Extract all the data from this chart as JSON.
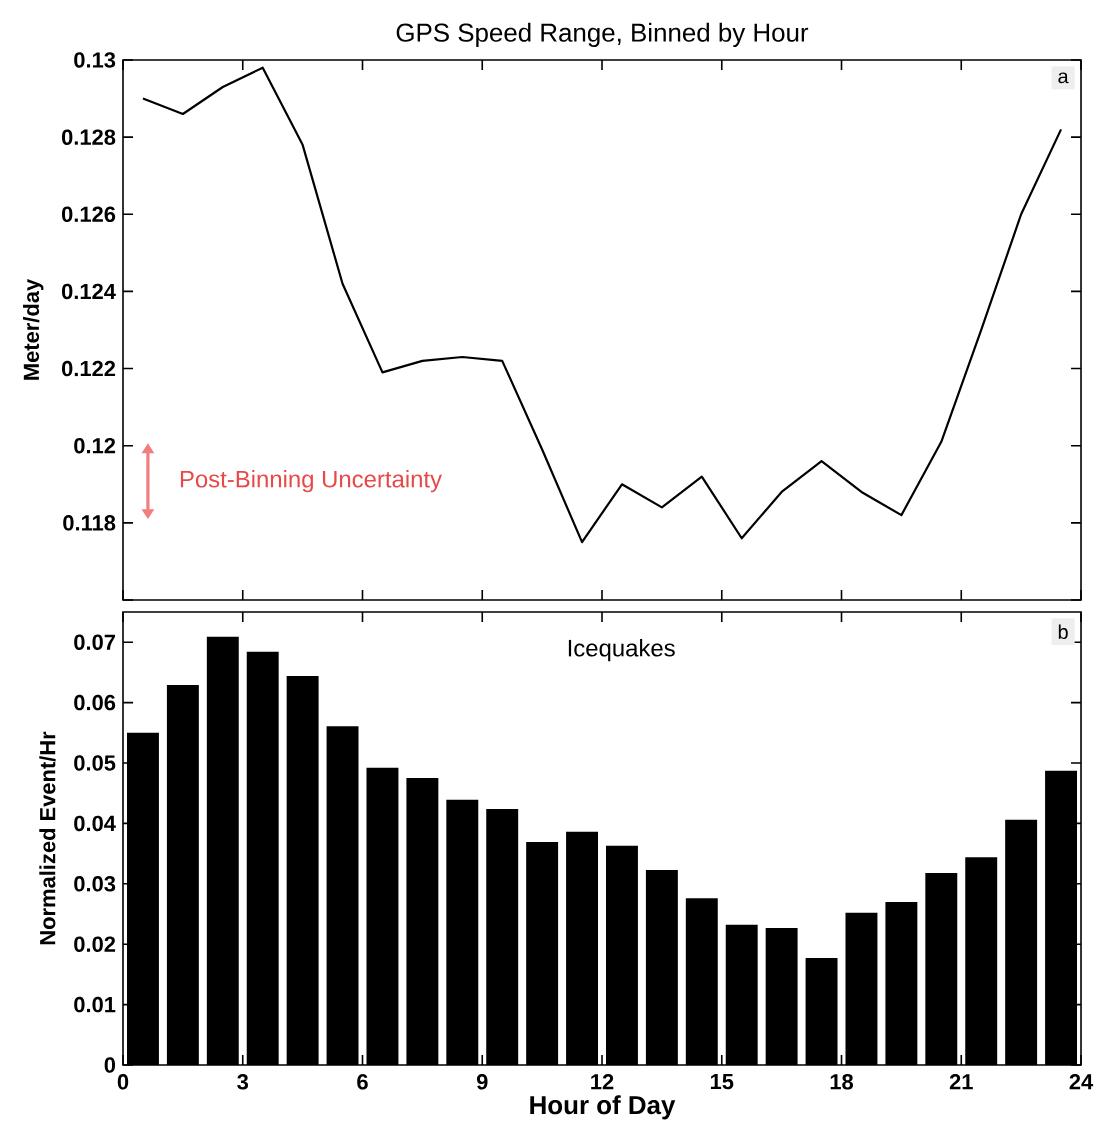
{
  "chart_data": [
    {
      "type": "line",
      "title": "GPS Speed Range, Binned by Hour",
      "ylabel": "Meter/day",
      "x": [
        0.5,
        1.5,
        2.5,
        3.5,
        4.5,
        5.5,
        6.5,
        7.5,
        8.5,
        9.5,
        10.5,
        11.5,
        12.5,
        13.5,
        14.5,
        15.5,
        16.5,
        17.5,
        18.5,
        19.5,
        20.5,
        21.5,
        22.5,
        23.5
      ],
      "values": [
        0.129,
        0.1286,
        0.1293,
        0.1298,
        0.1278,
        0.1242,
        0.1219,
        0.1222,
        0.1223,
        0.1222,
        0.1199,
        0.1175,
        0.119,
        0.1184,
        0.1192,
        0.1176,
        0.1188,
        0.1196,
        0.1188,
        0.1182,
        0.1201,
        0.123,
        0.126,
        0.1282
      ],
      "color": "#000000",
      "xlim": [
        0,
        24
      ],
      "xticks": [
        0,
        3,
        6,
        9,
        12,
        15,
        18,
        21,
        24
      ],
      "ylim": [
        0.116,
        0.13
      ],
      "yticks": [
        {
          "value": 0.116,
          "label": null
        },
        0.118,
        0.12,
        0.122,
        0.124,
        0.126,
        0.128,
        0.13
      ],
      "tick_labels": "y",
      "annotations": [
        "a",
        "Post-Binning Uncertainty"
      ]
    },
    {
      "type": "bar",
      "xlabel": "Hour of Day",
      "ylabel": "Normalized Event/Hr",
      "x": [
        0.5,
        1.5,
        2.5,
        3.5,
        4.5,
        5.5,
        6.5,
        7.5,
        8.5,
        9.5,
        10.5,
        11.5,
        12.5,
        13.5,
        14.5,
        15.5,
        16.5,
        17.5,
        18.5,
        19.5,
        20.5,
        21.5,
        22.5,
        23.5
      ],
      "values": [
        0.055,
        0.0629,
        0.0709,
        0.0684,
        0.0644,
        0.0561,
        0.0492,
        0.0475,
        0.0439,
        0.0424,
        0.0369,
        0.0386,
        0.0363,
        0.0323,
        0.0276,
        0.0232,
        0.0227,
        0.0177,
        0.0252,
        0.027,
        0.0318,
        0.0344,
        0.0406,
        0.0487
      ],
      "color": "#000000",
      "xlim": [
        0,
        24
      ],
      "xticks": [
        0,
        3,
        6,
        9,
        12,
        15,
        18,
        21,
        24
      ],
      "ylim": [
        0,
        0.075
      ],
      "yticks": [
        0,
        0.01,
        0.02,
        0.03,
        0.04,
        0.05,
        0.06,
        0.07
      ],
      "annotations": [
        "Icequakes",
        "b"
      ]
    }
  ]
}
